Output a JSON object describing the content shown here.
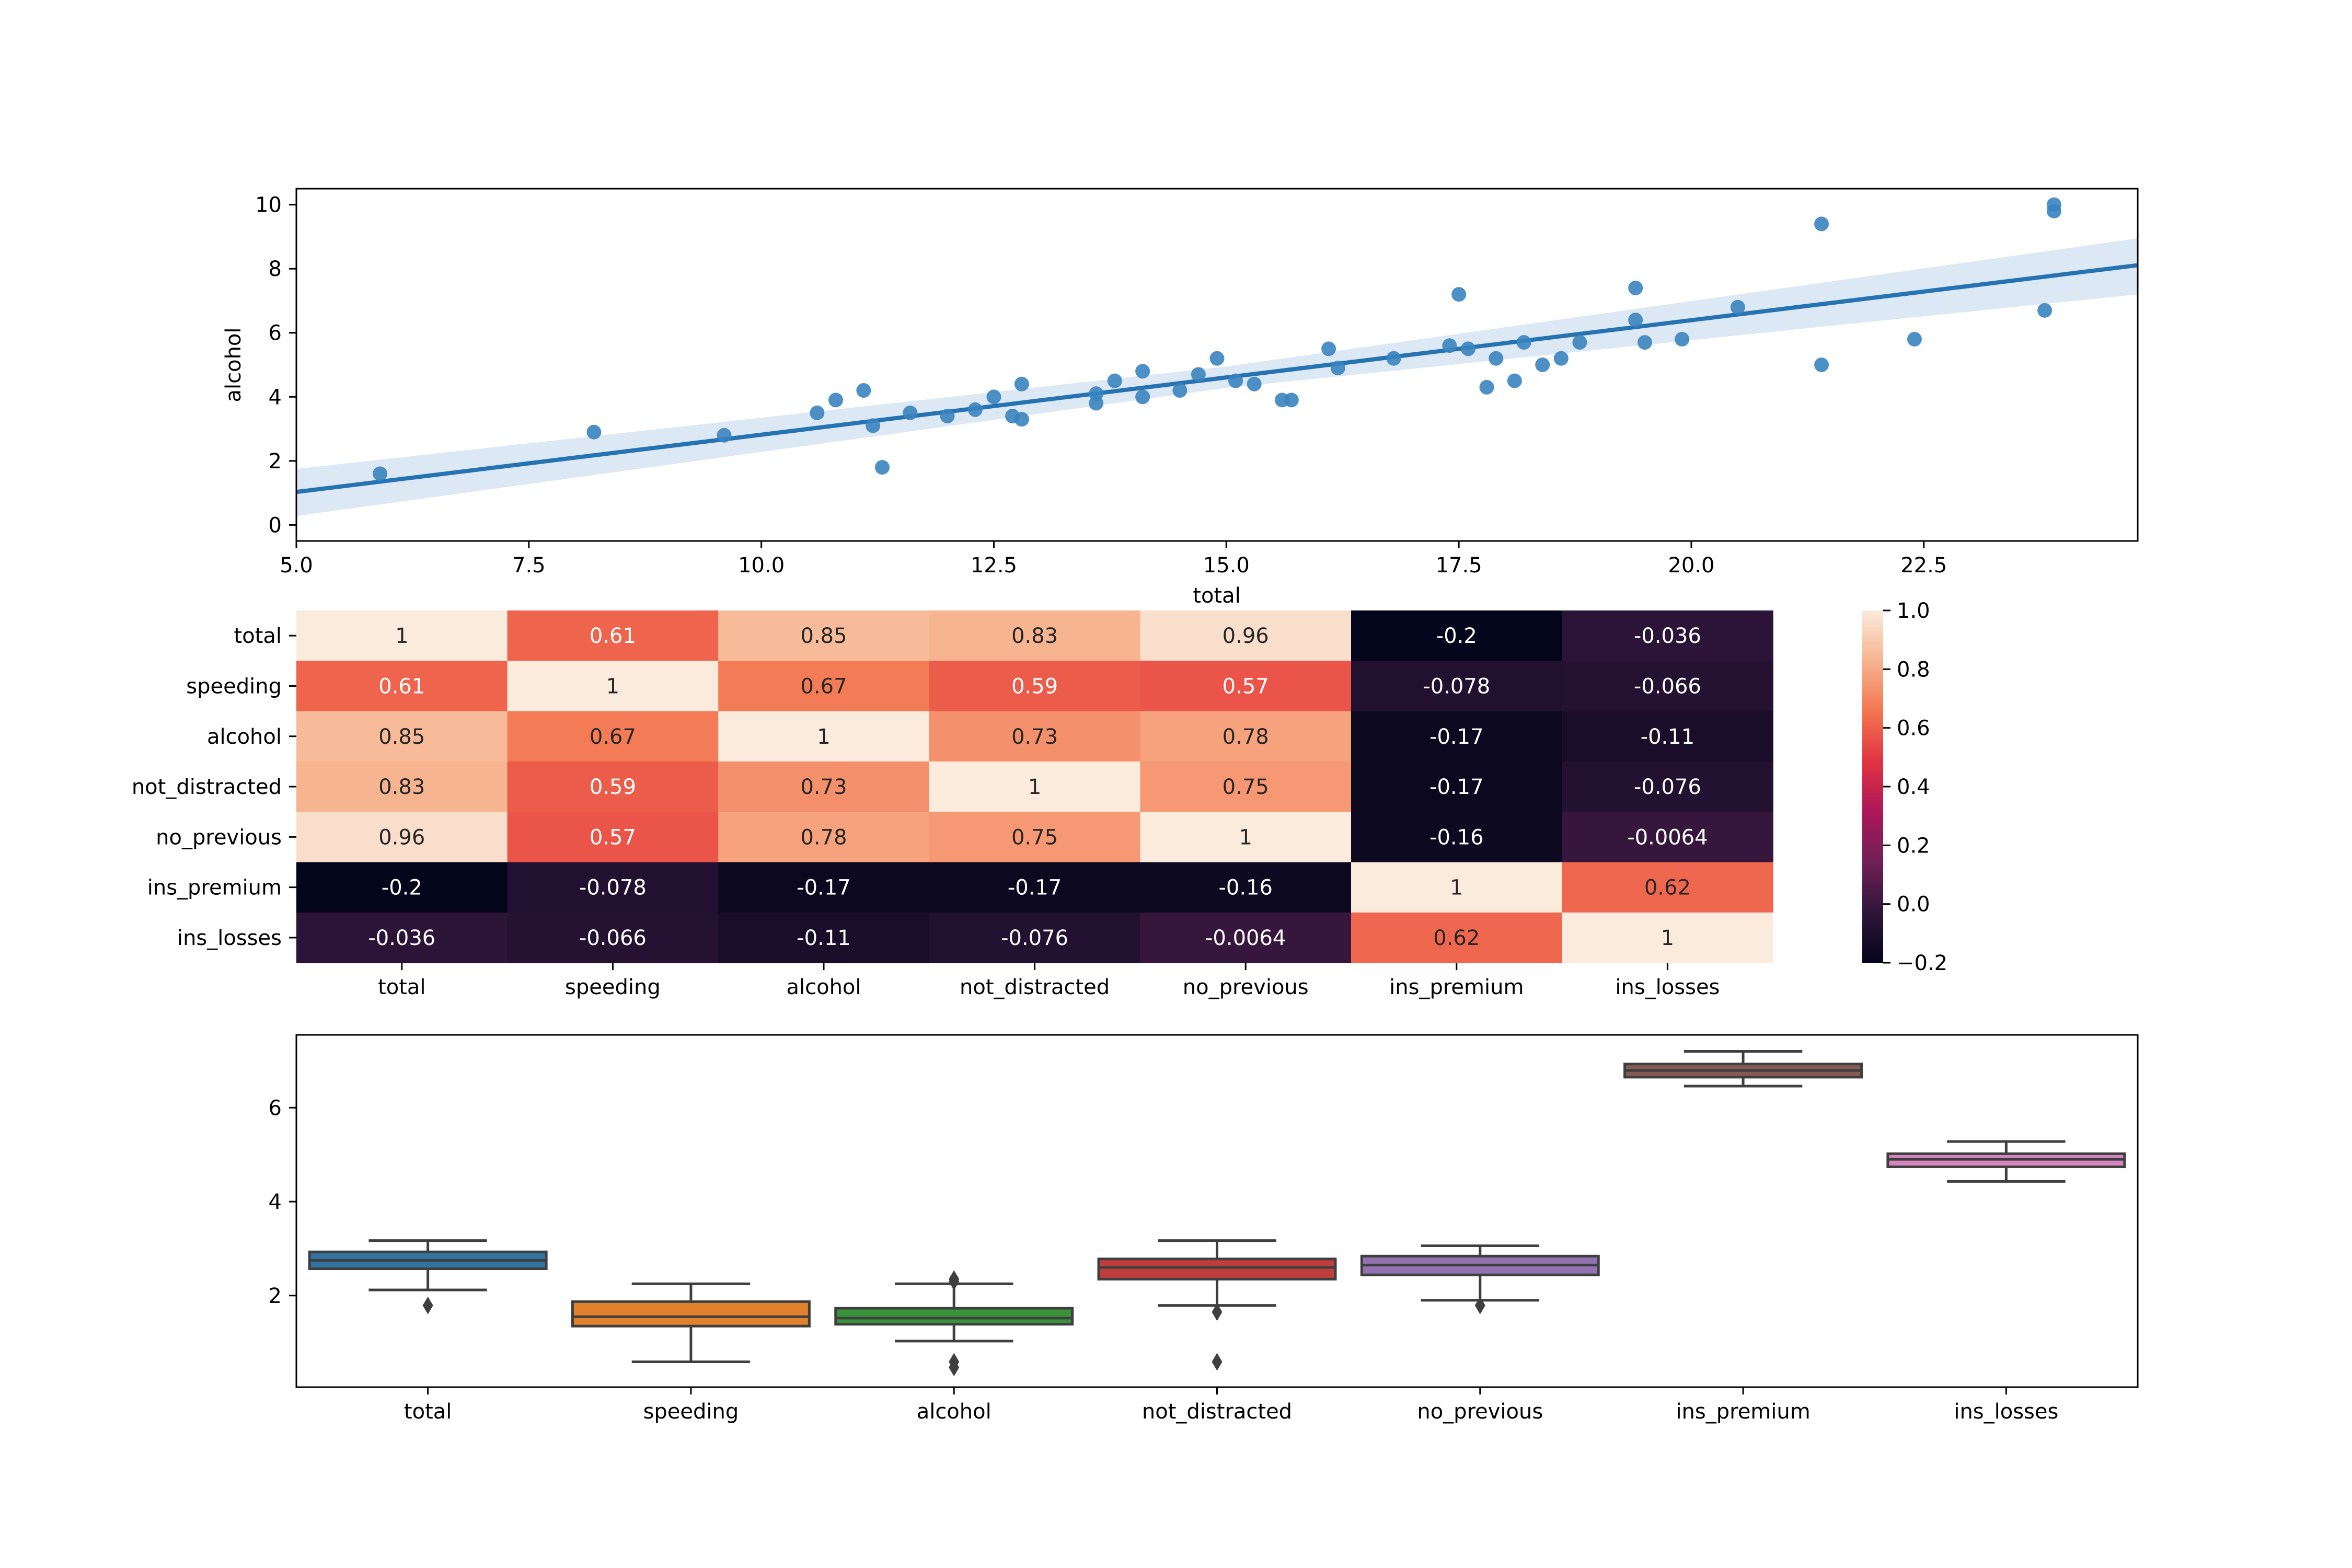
{
  "chart_data": [
    {
      "type": "scatter",
      "xlabel": "total",
      "ylabel": "alcohol",
      "xlim": [
        5.0,
        24.8
      ],
      "ylim": [
        -0.5,
        10.5
      ],
      "xticks": [
        "5.0",
        "7.5",
        "10.0",
        "12.5",
        "15.0",
        "17.5",
        "20.0",
        "22.5"
      ],
      "yticks": [
        "0",
        "2",
        "4",
        "6",
        "8",
        "10"
      ],
      "regression_line": {
        "x": [
          5.0,
          24.8
        ],
        "y": [
          1.03,
          8.11
        ]
      },
      "confidence_band": {
        "x": [
          5.0,
          15.0,
          24.8
        ],
        "lower": [
          0.28,
          4.28,
          7.2
        ],
        "upper": [
          1.75,
          4.95,
          8.95
        ]
      },
      "points": [
        {
          "x": 5.9,
          "y": 1.6
        },
        {
          "x": 8.2,
          "y": 2.9
        },
        {
          "x": 9.6,
          "y": 2.8
        },
        {
          "x": 10.6,
          "y": 3.5
        },
        {
          "x": 10.8,
          "y": 3.9
        },
        {
          "x": 11.1,
          "y": 4.2
        },
        {
          "x": 11.2,
          "y": 3.1
        },
        {
          "x": 11.3,
          "y": 1.8
        },
        {
          "x": 11.6,
          "y": 3.5
        },
        {
          "x": 12.0,
          "y": 3.4
        },
        {
          "x": 12.3,
          "y": 3.6
        },
        {
          "x": 12.5,
          "y": 4.0
        },
        {
          "x": 12.7,
          "y": 3.4
        },
        {
          "x": 12.8,
          "y": 4.4
        },
        {
          "x": 12.8,
          "y": 3.3
        },
        {
          "x": 13.6,
          "y": 4.1
        },
        {
          "x": 13.6,
          "y": 3.8
        },
        {
          "x": 13.8,
          "y": 4.5
        },
        {
          "x": 14.1,
          "y": 4.8
        },
        {
          "x": 14.1,
          "y": 4.0
        },
        {
          "x": 14.5,
          "y": 4.2
        },
        {
          "x": 14.7,
          "y": 4.7
        },
        {
          "x": 14.9,
          "y": 5.2
        },
        {
          "x": 15.1,
          "y": 4.5
        },
        {
          "x": 15.3,
          "y": 4.4
        },
        {
          "x": 15.6,
          "y": 3.9
        },
        {
          "x": 15.7,
          "y": 3.9
        },
        {
          "x": 16.1,
          "y": 5.5
        },
        {
          "x": 16.2,
          "y": 4.9
        },
        {
          "x": 16.8,
          "y": 5.2
        },
        {
          "x": 17.4,
          "y": 5.6
        },
        {
          "x": 17.5,
          "y": 7.2
        },
        {
          "x": 17.6,
          "y": 5.5
        },
        {
          "x": 17.8,
          "y": 4.3
        },
        {
          "x": 17.9,
          "y": 5.2
        },
        {
          "x": 18.1,
          "y": 4.5
        },
        {
          "x": 18.2,
          "y": 5.7
        },
        {
          "x": 18.4,
          "y": 5.0
        },
        {
          "x": 18.6,
          "y": 5.2
        },
        {
          "x": 18.8,
          "y": 5.7
        },
        {
          "x": 19.4,
          "y": 7.4
        },
        {
          "x": 19.4,
          "y": 6.4
        },
        {
          "x": 19.5,
          "y": 5.7
        },
        {
          "x": 19.9,
          "y": 5.8
        },
        {
          "x": 20.5,
          "y": 6.8
        },
        {
          "x": 21.4,
          "y": 9.4
        },
        {
          "x": 21.4,
          "y": 5.0
        },
        {
          "x": 22.4,
          "y": 5.8
        },
        {
          "x": 23.8,
          "y": 6.7
        },
        {
          "x": 23.9,
          "y": 10.0
        },
        {
          "x": 23.9,
          "y": 9.8
        }
      ],
      "grid": false,
      "colors": {
        "points": "#3a84bf",
        "line": "#2673b2",
        "band": "#c5d9ec"
      }
    },
    {
      "type": "heatmap",
      "rows": [
        "total",
        "speeding",
        "alcohol",
        "not_distracted",
        "no_previous",
        "ins_premium",
        "ins_losses"
      ],
      "columns": [
        "total",
        "speeding",
        "alcohol",
        "not_distracted",
        "no_previous",
        "ins_premium",
        "ins_losses"
      ],
      "values": [
        [
          1,
          0.61,
          0.85,
          0.83,
          0.96,
          -0.2,
          -0.036
        ],
        [
          0.61,
          1,
          0.67,
          0.59,
          0.57,
          -0.078,
          -0.066
        ],
        [
          0.85,
          0.67,
          1,
          0.73,
          0.78,
          -0.17,
          -0.11
        ],
        [
          0.83,
          0.59,
          0.73,
          1,
          0.75,
          -0.17,
          -0.076
        ],
        [
          0.96,
          0.57,
          0.78,
          0.75,
          1,
          -0.16,
          -0.0064
        ],
        [
          -0.2,
          -0.078,
          -0.17,
          -0.17,
          -0.16,
          1,
          0.62
        ],
        [
          -0.036,
          -0.066,
          -0.11,
          -0.076,
          -0.0064,
          0.62,
          1
        ]
      ],
      "cell_labels": [
        [
          "1",
          "0.61",
          "0.85",
          "0.83",
          "0.96",
          "-0.2",
          "-0.036"
        ],
        [
          "0.61",
          "1",
          "0.67",
          "0.59",
          "0.57",
          "-0.078",
          "-0.066"
        ],
        [
          "0.85",
          "0.67",
          "1",
          "0.73",
          "0.78",
          "-0.17",
          "-0.11"
        ],
        [
          "0.83",
          "0.59",
          "0.73",
          "1",
          "0.75",
          "-0.17",
          "-0.076"
        ],
        [
          "0.96",
          "0.57",
          "0.78",
          "0.75",
          "1",
          "-0.16",
          "-0.0064"
        ],
        [
          "-0.2",
          "-0.078",
          "-0.17",
          "-0.17",
          "-0.16",
          "1",
          "0.62"
        ],
        [
          "-0.036",
          "-0.066",
          "-0.11",
          "-0.076",
          "-0.0064",
          "0.62",
          "1"
        ]
      ],
      "colorbar": {
        "vmin": -0.2,
        "vmax": 1.0,
        "ticks": [
          "1.0",
          "0.8",
          "0.6",
          "0.4",
          "0.2",
          "0.0",
          "−0.2"
        ],
        "colors": [
          "#03051a",
          "#2e1539",
          "#701f57",
          "#ad1759",
          "#e13342",
          "#f37651",
          "#f6b48f",
          "#faebdd"
        ]
      }
    },
    {
      "type": "box",
      "categories": [
        "total",
        "speeding",
        "alcohol",
        "not_distracted",
        "no_previous",
        "ins_premium",
        "ins_losses"
      ],
      "ylim": [
        0.05,
        7.55
      ],
      "yticks": [
        "2",
        "4",
        "6"
      ],
      "boxes": [
        {
          "whislo": 2.12,
          "q1": 2.57,
          "med": 2.75,
          "q3": 2.93,
          "whishi": 3.17,
          "fliers": [
            1.79
          ],
          "color": "#3274a1"
        },
        {
          "whislo": 0.59,
          "q1": 1.35,
          "med": 1.55,
          "q3": 1.87,
          "whishi": 2.25,
          "fliers": [],
          "color": "#e1812c"
        },
        {
          "whislo": 1.03,
          "q1": 1.39,
          "med": 1.52,
          "q3": 1.73,
          "whishi": 2.25,
          "fliers": [
            2.35,
            2.3,
            0.59,
            0.47
          ],
          "color": "#3a923a"
        },
        {
          "whislo": 1.79,
          "q1": 2.35,
          "med": 2.6,
          "q3": 2.78,
          "whishi": 3.17,
          "fliers": [
            1.65,
            0.59
          ],
          "color": "#c03d3e"
        },
        {
          "whislo": 1.9,
          "q1": 2.44,
          "med": 2.65,
          "q3": 2.84,
          "whishi": 3.06,
          "fliers": [
            1.79
          ],
          "color": "#9372b2"
        },
        {
          "whislo": 6.46,
          "q1": 6.65,
          "med": 6.79,
          "q3": 6.93,
          "whishi": 7.2,
          "fliers": [],
          "color": "#845b53"
        },
        {
          "whislo": 4.43,
          "q1": 4.74,
          "med": 4.9,
          "q3": 5.02,
          "whishi": 5.28,
          "fliers": [],
          "color": "#d684bd"
        }
      ],
      "grid": false
    }
  ]
}
